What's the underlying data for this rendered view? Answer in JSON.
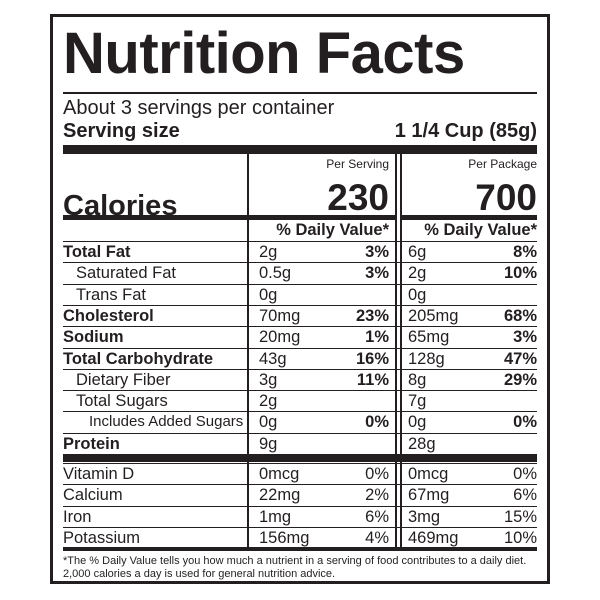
{
  "title": "Nutrition Facts",
  "servings_per_container": "About 3 servings per container",
  "serving_size_label": "Serving size",
  "serving_size_value": "1 1/4 Cup (85g)",
  "per_serving_header": "Per Serving",
  "per_package_header": "Per Package",
  "calories_label": "Calories",
  "calories_per_serving": "230",
  "calories_per_package": "700",
  "dv_header": "% Daily Value*",
  "nutrients": [
    {
      "name": "Total Fat",
      "serv_amount": "2g",
      "serv_dv": "3%",
      "pkg_amount": "6g",
      "pkg_dv": "8%"
    },
    {
      "name": "Saturated Fat",
      "serv_amount": "0.5g",
      "serv_dv": "3%",
      "pkg_amount": "2g",
      "pkg_dv": "10%"
    },
    {
      "name": "Trans Fat",
      "serv_amount": "0g",
      "serv_dv": "",
      "pkg_amount": "0g",
      "pkg_dv": ""
    },
    {
      "name": "Cholesterol",
      "serv_amount": "70mg",
      "serv_dv": "23%",
      "pkg_amount": "205mg",
      "pkg_dv": "68%"
    },
    {
      "name": "Sodium",
      "serv_amount": "20mg",
      "serv_dv": "1%",
      "pkg_amount": "65mg",
      "pkg_dv": "3%"
    },
    {
      "name": "Total Carbohydrate",
      "serv_amount": "43g",
      "serv_dv": "16%",
      "pkg_amount": "128g",
      "pkg_dv": "47%"
    },
    {
      "name": "Dietary Fiber",
      "serv_amount": "3g",
      "serv_dv": "11%",
      "pkg_amount": "8g",
      "pkg_dv": "29%"
    },
    {
      "name": "Total Sugars",
      "serv_amount": "2g",
      "serv_dv": "",
      "pkg_amount": "7g",
      "pkg_dv": ""
    },
    {
      "name": "Includes Added Sugars",
      "serv_amount": "0g",
      "serv_dv": "0%",
      "pkg_amount": "0g",
      "pkg_dv": "0%"
    },
    {
      "name": "Protein",
      "serv_amount": "9g",
      "serv_dv": "",
      "pkg_amount": "28g",
      "pkg_dv": ""
    }
  ],
  "vitamins": [
    {
      "name": "Vitamin D",
      "serv_amount": "0mcg",
      "serv_dv": "0%",
      "pkg_amount": "0mcg",
      "pkg_dv": "0%"
    },
    {
      "name": "Calcium",
      "serv_amount": "22mg",
      "serv_dv": "2%",
      "pkg_amount": "67mg",
      "pkg_dv": "6%"
    },
    {
      "name": "Iron",
      "serv_amount": "1mg",
      "serv_dv": "6%",
      "pkg_amount": "3mg",
      "pkg_dv": "15%"
    },
    {
      "name": "Potassium",
      "serv_amount": "156mg",
      "serv_dv": "4%",
      "pkg_amount": "469mg",
      "pkg_dv": "10%"
    }
  ],
  "footnote": "*The % Daily Value tells you how much a nutrient in a serving of food contributes to a daily diet. 2,000 calories a day is used for general nutrition advice."
}
